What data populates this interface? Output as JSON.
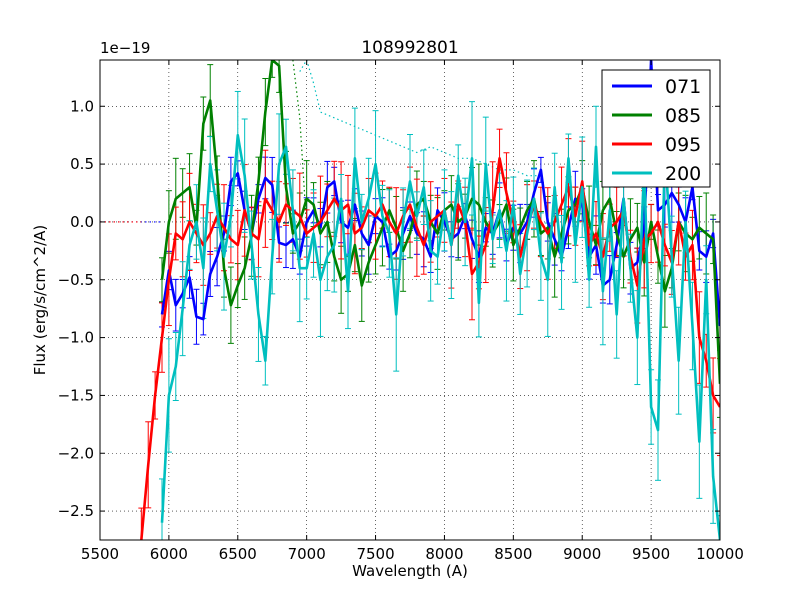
{
  "chart_data": {
    "type": "line",
    "title": "108992801",
    "xlabel": "Wavelength (A)",
    "ylabel": "Flux (erg/s/cm^2/A)",
    "y_multiplier": "1e−19",
    "xlim": [
      5500,
      10000
    ],
    "ylim": [
      -2.75,
      1.4
    ],
    "x_ticks": [
      5500,
      6000,
      6500,
      7000,
      7500,
      8000,
      8500,
      9000,
      9500,
      10000
    ],
    "x_tick_labels": [
      "5500",
      "6000",
      "6500",
      "7000",
      "7500",
      "8000",
      "8500",
      "9000",
      "9500",
      "10000"
    ],
    "y_ticks": [
      -2.5,
      -2.0,
      -1.5,
      -1.0,
      -0.5,
      0.0,
      0.5,
      1.0
    ],
    "y_tick_labels": [
      "−2.5",
      "−2.0",
      "−1.5",
      "−1.0",
      "−0.5",
      "0.0",
      "0.5",
      "1.0"
    ],
    "grid": true,
    "legend_position": "top-right",
    "series": [
      {
        "name": "071",
        "color": "#0000ff",
        "x": [
          5950,
          6000,
          6050,
          6100,
          6150,
          6200,
          6250,
          6300,
          6350,
          6400,
          6450,
          6500,
          6550,
          6600,
          6650,
          6700,
          6750,
          6800,
          6850,
          6900,
          6950,
          7000,
          7050,
          7100,
          7150,
          7200,
          7250,
          7300,
          7350,
          7400,
          7450,
          7500,
          7550,
          7600,
          7650,
          7700,
          7750,
          7800,
          7850,
          7900,
          7950,
          8000,
          8050,
          8100,
          8150,
          8200,
          8250,
          8300,
          8350,
          8400,
          8450,
          8500,
          8550,
          8600,
          8650,
          8700,
          8750,
          8800,
          8850,
          8900,
          8950,
          9000,
          9050,
          9100,
          9150,
          9200,
          9250,
          9300,
          9350,
          9400,
          9450,
          9500,
          9550,
          9600,
          9650,
          9700,
          9750,
          9800,
          9850,
          9900,
          9950,
          10000
        ],
        "y": [
          -0.8,
          -0.42,
          -0.72,
          -0.62,
          -0.48,
          -0.82,
          -0.84,
          -0.45,
          -0.3,
          -0.1,
          0.35,
          0.42,
          0.1,
          -0.1,
          0.2,
          0.38,
          0.32,
          -0.18,
          -0.2,
          -0.15,
          -0.3,
          0.0,
          0.1,
          -0.05,
          0.3,
          0.35,
          0.0,
          -0.05,
          0.15,
          -0.1,
          -0.2,
          0.05,
          0.0,
          -0.3,
          -0.25,
          -0.1,
          0.05,
          -0.1,
          -0.15,
          -0.3,
          0.1,
          0.0,
          -0.15,
          -0.1,
          0.05,
          -0.15,
          -0.3,
          -0.05,
          -0.1,
          0.1,
          -0.2,
          -0.05,
          -0.1,
          0.0,
          0.25,
          0.45,
          0.0,
          -0.15,
          -0.3,
          -0.05,
          0.2,
          0.15,
          -0.3,
          -0.2,
          -0.55,
          -0.5,
          -0.2,
          0.2,
          -0.4,
          -0.35,
          -0.05,
          1.4,
          0.1,
          0.15,
          0.25,
          0.15,
          0.0,
          0.3,
          -0.25,
          -0.3,
          -0.1,
          -0.9
        ],
        "err": 0.18
      },
      {
        "name": "085",
        "color": "#008000",
        "x": [
          5950,
          6000,
          6050,
          6100,
          6150,
          6200,
          6250,
          6300,
          6350,
          6400,
          6450,
          6500,
          6550,
          6600,
          6650,
          6700,
          6750,
          6800,
          6850,
          6900,
          6950,
          7000,
          7050,
          7100,
          7150,
          7200,
          7250,
          7300,
          7350,
          7400,
          7450,
          7500,
          7550,
          7600,
          7650,
          7700,
          7750,
          7800,
          7850,
          7900,
          7950,
          8000,
          8050,
          8100,
          8150,
          8200,
          8250,
          8300,
          8350,
          8400,
          8450,
          8500,
          8550,
          8600,
          8650,
          8700,
          8750,
          8800,
          8850,
          8900,
          8950,
          9000,
          9050,
          9100,
          9150,
          9200,
          9250,
          9300,
          9350,
          9400,
          9450,
          9500,
          9550,
          9600,
          9650,
          9700,
          9750,
          9800,
          9850,
          9900,
          9950,
          10000
        ],
        "y": [
          -0.5,
          0.0,
          0.2,
          0.25,
          0.3,
          -0.05,
          0.85,
          1.05,
          0.4,
          -0.4,
          -0.72,
          -0.55,
          -0.4,
          -0.12,
          0.35,
          0.95,
          1.4,
          1.35,
          0.3,
          -0.1,
          0.0,
          0.2,
          0.15,
          -0.1,
          0.0,
          -0.3,
          -0.5,
          -0.45,
          -0.2,
          -0.55,
          -0.35,
          -0.2,
          -0.05,
          0.1,
          -0.05,
          -0.25,
          -0.1,
          0.15,
          0.2,
          0.0,
          -0.1,
          0.1,
          0.15,
          0.0,
          0.05,
          0.2,
          0.15,
          0.0,
          -0.1,
          0.0,
          0.15,
          -0.2,
          -0.05,
          0.1,
          0.2,
          -0.1,
          -0.05,
          -0.3,
          -0.1,
          0.1,
          0.15,
          0.3,
          0.0,
          -0.2,
          0.1,
          0.2,
          -0.1,
          -0.3,
          -0.15,
          -0.05,
          -0.35,
          0.0,
          -0.3,
          -0.6,
          -0.4,
          0.0,
          -0.1,
          -0.15,
          -0.05,
          -0.1,
          -0.15,
          -1.4
        ],
        "err": 0.25
      },
      {
        "name": "095",
        "color": "#ff0000",
        "x": [
          5800,
          5850,
          5900,
          5950,
          6000,
          6050,
          6100,
          6150,
          6200,
          6250,
          6300,
          6350,
          6400,
          6450,
          6500,
          6550,
          6600,
          6650,
          6700,
          6750,
          6800,
          6850,
          6900,
          6950,
          7000,
          7050,
          7100,
          7150,
          7200,
          7250,
          7300,
          7350,
          7400,
          7450,
          7500,
          7550,
          7600,
          7650,
          7700,
          7750,
          7800,
          7850,
          7900,
          7950,
          8000,
          8050,
          8100,
          8150,
          8200,
          8250,
          8300,
          8350,
          8400,
          8450,
          8500,
          8550,
          8600,
          8650,
          8700,
          8750,
          8800,
          8850,
          8900,
          8950,
          9000,
          9050,
          9100,
          9150,
          9200,
          9250,
          9300,
          9350,
          9400,
          9450,
          9500,
          9550,
          9600,
          9650,
          9700,
          9750,
          9800,
          9850,
          9900,
          9950,
          10000
        ],
        "y": [
          -2.75,
          -2.1,
          -1.5,
          -1.0,
          -0.5,
          -0.1,
          -0.15,
          0.0,
          -0.1,
          -0.2,
          -0.1,
          0.05,
          -0.05,
          -0.15,
          -0.2,
          0.1,
          -0.1,
          -0.15,
          0.2,
          0.1,
          0.0,
          0.15,
          0.1,
          0.05,
          -0.1,
          -0.05,
          0.0,
          0.1,
          0.2,
          0.1,
          0.15,
          -0.1,
          -0.05,
          0.1,
          0.05,
          0.15,
          0.0,
          -0.1,
          0.05,
          0.15,
          -0.05,
          -0.2,
          0.0,
          0.05,
          0.1,
          -0.2,
          0.15,
          0.0,
          -0.45,
          -0.35,
          -0.2,
          0.1,
          0.55,
          0.25,
          0.0,
          -0.3,
          -0.05,
          0.15,
          0.0,
          -0.1,
          0.0,
          0.15,
          0.3,
          0.05,
          0.35,
          -0.2,
          -0.1,
          -0.3,
          -0.05,
          0.0,
          0.1,
          -0.3,
          -0.55,
          -0.15,
          -0.1,
          0.0,
          -0.2,
          -0.35,
          0.0,
          -0.3,
          -0.2,
          -1.0,
          -1.2,
          -1.5,
          -1.6
        ],
        "err": 0.3
      },
      {
        "name": "200",
        "color": "#00bfbf",
        "x": [
          5950,
          6000,
          6050,
          6100,
          6150,
          6200,
          6250,
          6300,
          6350,
          6400,
          6450,
          6500,
          6550,
          6600,
          6650,
          6700,
          6750,
          6800,
          6850,
          6900,
          6950,
          7000,
          7050,
          7100,
          7150,
          7200,
          7250,
          7300,
          7350,
          7400,
          7450,
          7500,
          7550,
          7600,
          7650,
          7700,
          7750,
          7800,
          7850,
          7900,
          7950,
          8000,
          8050,
          8100,
          8150,
          8200,
          8250,
          8300,
          8350,
          8400,
          8450,
          8500,
          8550,
          8600,
          8650,
          8700,
          8750,
          8800,
          8850,
          8900,
          8950,
          9000,
          9050,
          9100,
          9150,
          9200,
          9250,
          9300,
          9350,
          9400,
          9450,
          9500,
          9550,
          9600,
          9650,
          9700,
          9750,
          9800,
          9850,
          9900,
          9950,
          10000
        ],
        "y": [
          -2.6,
          -1.5,
          -1.25,
          -0.75,
          -0.2,
          0.0,
          -0.4,
          0.5,
          0.1,
          -0.3,
          0.05,
          0.75,
          0.4,
          -0.2,
          -0.8,
          -1.2,
          -0.3,
          0.5,
          0.65,
          0.1,
          -0.4,
          -0.4,
          -0.1,
          -0.5,
          -0.3,
          -0.2,
          0.2,
          -0.6,
          0.55,
          0.0,
          0.2,
          0.5,
          0.05,
          -0.1,
          -0.8,
          0.0,
          0.35,
          0.05,
          0.3,
          -0.25,
          -0.3,
          0.1,
          -0.2,
          0.4,
          0.0,
          0.55,
          -0.7,
          0.5,
          -0.15,
          0.1,
          -0.25,
          0.15,
          -0.45,
          -0.1,
          0.2,
          -0.3,
          -0.5,
          0.3,
          -0.35,
          0.55,
          -0.2,
          0.3,
          -0.5,
          0.65,
          -0.6,
          0.1,
          -0.8,
          0.2,
          -0.4,
          -1.0,
          0.5,
          -1.6,
          -1.8,
          0.6,
          -0.3,
          -1.2,
          0.0,
          -0.9,
          -1.9,
          -0.5,
          -2.2,
          -2.75
        ],
        "err": 0.35
      }
    ],
    "dotted_overlays": [
      {
        "name": "071-dotted",
        "color": "#0000ff",
        "x": [
          5500,
          5950
        ],
        "y": [
          0.0,
          0.0
        ]
      },
      {
        "name": "095-dotted",
        "color": "#ff0000",
        "x": [
          5500,
          5800
        ],
        "y": [
          0.0,
          0.0
        ]
      },
      {
        "name": "085-dotted",
        "color": "#008000",
        "x": [
          6900,
          6950,
          7000
        ],
        "y": [
          1.4,
          0.9,
          -0.05
        ]
      },
      {
        "name": "200-dotted",
        "color": "#00bfbf",
        "x": [
          6950,
          7000,
          7050,
          7100,
          7200,
          7300,
          7400,
          7500,
          7600,
          7700,
          7800,
          7900,
          8000,
          8100,
          8200,
          8300,
          8400,
          8500,
          8600,
          8700
        ],
        "y": [
          1.3,
          1.4,
          1.2,
          0.95,
          0.9,
          0.85,
          0.8,
          0.75,
          0.7,
          0.65,
          0.6,
          0.65,
          0.6,
          0.55,
          0.55,
          0.5,
          0.45,
          0.45,
          0.4,
          0.4
        ]
      }
    ]
  }
}
